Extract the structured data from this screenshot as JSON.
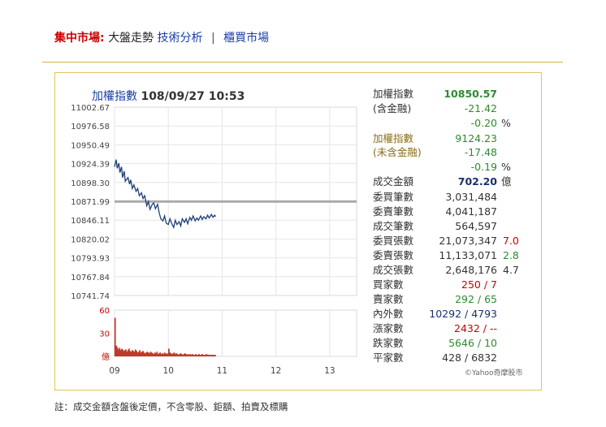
{
  "nav": {
    "market_label": "集中市場:",
    "link_trend": "大盤走勢",
    "link_tech": "技術分析",
    "separator": "|",
    "link_otc": "櫃買市場"
  },
  "chart_header": {
    "index_name": "加權指數",
    "datetime": "108/09/27 10:53"
  },
  "chart_data": [
    {
      "type": "line",
      "title": "加權指數 108/09/27 10:53",
      "y_ticks": [
        "11002.67",
        "10976.58",
        "10950.49",
        "10924.39",
        "10898.30",
        "10871.99",
        "10846.11",
        "10820.02",
        "10793.93",
        "10767.84",
        "10741.74"
      ],
      "ylim": [
        10741.74,
        11002.67
      ],
      "reference_line": 10871.99,
      "x_ticks": [
        "09",
        "10",
        "11",
        "12",
        "13"
      ],
      "xlim": [
        9,
        13.5
      ],
      "grid": true,
      "series": [
        {
          "x": [
            9.0,
            9.03,
            9.05,
            9.08,
            9.1,
            9.13,
            9.15,
            9.18,
            9.2,
            9.25,
            9.28,
            9.3,
            9.33,
            9.36,
            9.4,
            9.43,
            9.46,
            9.5,
            9.53,
            9.56,
            9.6,
            9.63,
            9.66,
            9.7,
            9.73,
            9.76,
            9.8,
            9.83,
            9.86,
            9.9,
            9.93,
            9.96,
            10.0,
            10.03,
            10.06,
            10.1,
            10.13,
            10.16,
            10.2,
            10.23,
            10.26,
            10.3,
            10.33,
            10.36,
            10.4,
            10.43,
            10.46,
            10.5,
            10.53,
            10.56,
            10.6,
            10.63,
            10.66,
            10.7,
            10.73,
            10.76,
            10.8,
            10.83,
            10.86,
            10.88
          ],
          "y": [
            10920,
            10930,
            10918,
            10925,
            10912,
            10920,
            10905,
            10914,
            10900,
            10905,
            10896,
            10902,
            10890,
            10895,
            10886,
            10890,
            10880,
            10884,
            10876,
            10880,
            10866,
            10872,
            10861,
            10868,
            10870,
            10862,
            10868,
            10856,
            10848,
            10845,
            10852,
            10842,
            10840,
            10848,
            10842,
            10836,
            10846,
            10840,
            10844,
            10838,
            10848,
            10843,
            10848,
            10841,
            10850,
            10846,
            10852,
            10845,
            10849,
            10846,
            10852,
            10847,
            10851,
            10848,
            10853,
            10849,
            10854,
            10850,
            10853,
            10851
          ]
        }
      ]
    },
    {
      "type": "bar",
      "y_ticks": [
        "60",
        "30",
        "億"
      ],
      "ylim": [
        0,
        60
      ],
      "x_ticks": [
        "09",
        "10",
        "11",
        "12",
        "13"
      ],
      "xlim": [
        9,
        13.5
      ],
      "x": [
        9.01,
        9.03,
        9.05,
        9.07,
        9.09,
        9.11,
        9.13,
        9.15,
        9.17,
        9.19,
        9.21,
        9.23,
        9.25,
        9.27,
        9.29,
        9.31,
        9.33,
        9.35,
        9.37,
        9.39,
        9.41,
        9.43,
        9.45,
        9.47,
        9.49,
        9.51,
        9.53,
        9.55,
        9.57,
        9.59,
        9.61,
        9.63,
        9.65,
        9.67,
        9.69,
        9.71,
        9.73,
        9.75,
        9.77,
        9.79,
        9.81,
        9.83,
        9.85,
        9.87,
        9.89,
        9.91,
        9.93,
        9.95,
        9.97,
        9.99,
        10.01,
        10.03,
        10.05,
        10.07,
        10.09,
        10.11,
        10.13,
        10.15,
        10.17,
        10.19,
        10.21,
        10.23,
        10.25,
        10.27,
        10.29,
        10.31,
        10.33,
        10.35,
        10.37,
        10.39,
        10.41,
        10.43,
        10.45,
        10.47,
        10.49,
        10.51,
        10.53,
        10.55,
        10.57,
        10.59,
        10.61,
        10.63,
        10.65,
        10.67,
        10.69,
        10.71,
        10.73,
        10.75,
        10.77,
        10.79,
        10.81,
        10.83,
        10.85,
        10.87
      ],
      "values": [
        50,
        14,
        12,
        9,
        11,
        8,
        10,
        9,
        7,
        8,
        9,
        6,
        8,
        10,
        7,
        6,
        8,
        7,
        6,
        9,
        7,
        5,
        6,
        8,
        5,
        6,
        7,
        5,
        4,
        5,
        6,
        5,
        4,
        6,
        5,
        4,
        3,
        5,
        4,
        6,
        3,
        4,
        5,
        3,
        4,
        3,
        5,
        4,
        3,
        4,
        10,
        5,
        4,
        3,
        4,
        5,
        3,
        4,
        3,
        2,
        3,
        4,
        3,
        2,
        3,
        4,
        3,
        2,
        3,
        2,
        3,
        2,
        3,
        2,
        2,
        3,
        2,
        2,
        3,
        2,
        2,
        3,
        2,
        2,
        2,
        3,
        2,
        2,
        2,
        2,
        2,
        2,
        2,
        2
      ]
    }
  ],
  "stats": {
    "rows": [
      {
        "label": "加權指數",
        "value": "10850.57",
        "unit": "",
        "extra": "",
        "label_color": "dark",
        "value_color": "green",
        "value_bold": true
      },
      {
        "label": "(含金融)",
        "value": "-21.42",
        "unit": "",
        "extra": "",
        "label_color": "dark",
        "value_color": "green",
        "value_bold": false
      },
      {
        "label": "",
        "value": "-0.20",
        "unit": "%",
        "extra": "",
        "label_color": "dark",
        "value_color": "green",
        "value_bold": false
      },
      {
        "label": "加權指數",
        "value": "9124.23",
        "unit": "",
        "extra": "",
        "label_color": "olive",
        "value_color": "green",
        "value_bold": false
      },
      {
        "label": "(未含金融)",
        "value": "-17.48",
        "unit": "",
        "extra": "",
        "label_color": "olive",
        "value_color": "green",
        "value_bold": false
      },
      {
        "label": "",
        "value": "-0.19",
        "unit": "%",
        "extra": "",
        "label_color": "dark",
        "value_color": "green",
        "value_bold": false
      },
      {
        "label": "成交金額",
        "value": "702.20",
        "unit": "億",
        "extra": "",
        "label_color": "dark",
        "value_color": "navy",
        "value_bold": true
      },
      {
        "label": "委買筆數",
        "value": "3,031,484",
        "unit": "",
        "extra": "",
        "label_color": "dark",
        "value_color": "dark",
        "value_bold": false
      },
      {
        "label": "委賣筆數",
        "value": "4,041,187",
        "unit": "",
        "extra": "",
        "label_color": "dark",
        "value_color": "dark",
        "value_bold": false
      },
      {
        "label": "成交筆數",
        "value": "564,597",
        "unit": "",
        "extra": "",
        "label_color": "dark",
        "value_color": "dark",
        "value_bold": false
      },
      {
        "label": "委買張數",
        "value": "21,073,347",
        "unit": "",
        "extra": "7.0",
        "extra_color": "red",
        "label_color": "dark",
        "value_color": "dark",
        "value_bold": false
      },
      {
        "label": "委賣張數",
        "value": "11,133,071",
        "unit": "",
        "extra": "2.8",
        "extra_color": "green",
        "label_color": "dark",
        "value_color": "dark",
        "value_bold": false
      },
      {
        "label": "成交張數",
        "value": "2,648,176",
        "unit": "",
        "extra": "4.7",
        "extra_color": "dark",
        "label_color": "dark",
        "value_color": "dark",
        "value_bold": false
      },
      {
        "label": "買家數",
        "value": "250 / 7",
        "unit": "",
        "extra": "",
        "label_color": "dark",
        "value_color": "red",
        "value_bold": false
      },
      {
        "label": "賣家數",
        "value": "292 / 65",
        "unit": "",
        "extra": "",
        "label_color": "dark",
        "value_color": "green",
        "value_bold": false
      },
      {
        "label": "內外數",
        "value": "10292 / 4793",
        "unit": "",
        "extra": "",
        "label_color": "dark",
        "value_color": "navy",
        "value_bold": false
      },
      {
        "label": "漲家數",
        "value": "2432 / --",
        "unit": "",
        "extra": "",
        "label_color": "dark",
        "value_color": "red",
        "value_bold": false
      },
      {
        "label": "跌家數",
        "value": "5646 / 10",
        "unit": "",
        "extra": "",
        "label_color": "dark",
        "value_color": "green",
        "value_bold": false
      },
      {
        "label": "平家數",
        "value": "428 / 6832",
        "unit": "",
        "extra": "",
        "label_color": "dark",
        "value_color": "dark",
        "value_bold": false
      }
    ]
  },
  "credit": "©Yahoo奇摩股市",
  "footnote": "註：成交金額含盤後定價，不含零股、鉅額、拍賣及標購",
  "colors": {
    "red": "#cc0000",
    "green": "#2e8b2e",
    "navy": "#1a2f6e",
    "line": "#1f3f7a",
    "bar": "#c0392b",
    "reference": "#aaaaaa",
    "panel_border": "#e2c55a"
  }
}
